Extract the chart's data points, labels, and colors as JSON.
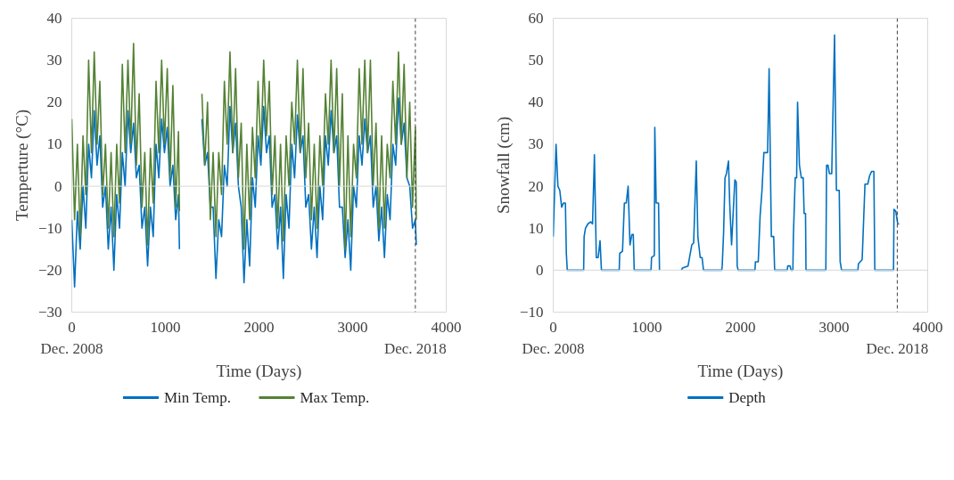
{
  "chart_data": [
    {
      "type": "line",
      "xlabel": "Time (Days)",
      "ylabel": "Temperture (°C)",
      "xlim": [
        0,
        4000
      ],
      "xticks": [
        0,
        1000,
        2000,
        3000,
        4000
      ],
      "ylim": [
        -30,
        40
      ],
      "yticks": [
        -30,
        -20,
        -10,
        0,
        10,
        20,
        30,
        40
      ],
      "grid": false,
      "legend": "bottom",
      "line_style": "solid",
      "x": [
        0,
        30,
        60,
        90,
        120,
        150,
        180,
        210,
        240,
        270,
        300,
        330,
        360,
        390,
        420,
        450,
        480,
        510,
        540,
        570,
        600,
        630,
        660,
        690,
        720,
        750,
        780,
        810,
        840,
        870,
        900,
        930,
        960,
        990,
        1020,
        1050,
        1080,
        1110,
        1140,
        1150,
        1270,
        1390,
        1420,
        1450,
        1480,
        1510,
        1540,
        1570,
        1600,
        1630,
        1660,
        1690,
        1720,
        1750,
        1780,
        1810,
        1840,
        1870,
        1900,
        1930,
        1960,
        1990,
        2020,
        2050,
        2080,
        2110,
        2140,
        2170,
        2200,
        2230,
        2260,
        2290,
        2320,
        2350,
        2380,
        2410,
        2440,
        2470,
        2500,
        2530,
        2560,
        2590,
        2620,
        2650,
        2680,
        2710,
        2740,
        2770,
        2800,
        2830,
        2860,
        2890,
        2920,
        2950,
        2980,
        3010,
        3040,
        3070,
        3100,
        3130,
        3160,
        3190,
        3220,
        3250,
        3280,
        3310,
        3340,
        3370,
        3400,
        3430,
        3460,
        3490,
        3520,
        3550,
        3580,
        3610,
        3640,
        3670,
        3680
      ],
      "series": [
        {
          "name": "Min Temp.",
          "color": "#0070c0",
          "values": [
            -8,
            -24,
            -6,
            -15,
            0,
            -10,
            10,
            2,
            18,
            5,
            12,
            -5,
            0,
            -15,
            -5,
            -20,
            -2,
            -10,
            8,
            0,
            18,
            8,
            15,
            2,
            5,
            -10,
            -5,
            -19,
            -5,
            -12,
            10,
            2,
            16,
            8,
            14,
            0,
            5,
            -8,
            -2,
            -15,
            null,
            16,
            5,
            8,
            -5,
            -5,
            -22,
            -8,
            -12,
            5,
            0,
            19,
            8,
            15,
            0,
            -5,
            -23,
            -8,
            -19,
            2,
            -5,
            12,
            5,
            19,
            8,
            12,
            -5,
            -2,
            -15,
            -5,
            -22,
            -2,
            -10,
            10,
            2,
            17,
            8,
            12,
            -5,
            -2,
            -15,
            -5,
            -17,
            0,
            -8,
            12,
            5,
            18,
            8,
            12,
            -5,
            -5,
            -17,
            -8,
            -20,
            0,
            -5,
            12,
            5,
            16,
            8,
            12,
            -5,
            0,
            -13,
            -5,
            -17,
            -2,
            -8,
            10,
            5,
            21,
            10,
            15,
            2,
            0,
            -10,
            -8,
            -14
          ]
        },
        {
          "name": "Max Temp.",
          "color": "#548235",
          "values": [
            16,
            -8,
            10,
            -12,
            12,
            -2,
            30,
            8,
            32,
            10,
            25,
            -2,
            10,
            -10,
            8,
            -12,
            10,
            -4,
            29,
            8,
            30,
            10,
            34,
            5,
            22,
            -5,
            8,
            -14,
            9,
            -4,
            25,
            8,
            30,
            10,
            28,
            2,
            24,
            -5,
            13,
            -6,
            null,
            22,
            5,
            20,
            -8,
            8,
            -12,
            8,
            -2,
            25,
            10,
            32,
            8,
            28,
            2,
            15,
            -15,
            10,
            -8,
            14,
            2,
            25,
            8,
            30,
            12,
            25,
            -2,
            12,
            -10,
            10,
            -13,
            12,
            0,
            20,
            10,
            30,
            8,
            28,
            2,
            15,
            -8,
            10,
            -10,
            12,
            0,
            22,
            10,
            30,
            8,
            28,
            0,
            22,
            -15,
            12,
            -12,
            10,
            2,
            28,
            10,
            30,
            8,
            30,
            0,
            15,
            -10,
            12,
            -10,
            10,
            2,
            25,
            10,
            32,
            10,
            29,
            2,
            20,
            -5,
            14,
            -8
          ]
        }
      ],
      "ref_lines": [
        {
          "axis": "y",
          "value": 0,
          "color": "#d9d9d9",
          "line_style": "solid"
        },
        {
          "axis": "x",
          "value": 3670,
          "label": "Dec. 2018",
          "color": "#404040",
          "line_style": "dashed"
        }
      ],
      "annotations": [
        "Dec. 2008"
      ]
    },
    {
      "type": "line",
      "xlabel": "Time (Days)",
      "ylabel": "Snowfall (cm)",
      "xlim": [
        0,
        4000
      ],
      "xticks": [
        0,
        1000,
        2000,
        3000,
        4000
      ],
      "ylim": [
        -10,
        60
      ],
      "yticks": [
        -10,
        0,
        10,
        20,
        30,
        40,
        50,
        60
      ],
      "grid": false,
      "legend": "bottom",
      "line_style": "solid",
      "x": [
        0,
        30,
        50,
        70,
        90,
        110,
        130,
        140,
        150,
        325,
        330,
        345,
        370,
        400,
        420,
        440,
        460,
        480,
        500,
        515,
        705,
        710,
        740,
        760,
        780,
        800,
        820,
        840,
        855,
        865,
        1045,
        1050,
        1080,
        1085,
        1100,
        1125,
        1135,
        1250,
        1370,
        1380,
        1440,
        1480,
        1500,
        1528,
        1545,
        1570,
        1590,
        1605,
        1800,
        1805,
        1820,
        1835,
        1850,
        1872,
        1885,
        1905,
        1940,
        1955,
        1965,
        1975,
        2155,
        2160,
        2190,
        2210,
        2230,
        2250,
        2290,
        2306,
        2330,
        2355,
        2365,
        2500,
        2505,
        2530,
        2540,
        2560,
        2565,
        2585,
        2600,
        2610,
        2630,
        2650,
        2670,
        2680,
        2695,
        2700,
        2912,
        2920,
        2935,
        2950,
        2975,
        3005,
        3025,
        3055,
        3065,
        3080,
        3255,
        3260,
        3300,
        3330,
        3360,
        3380,
        3400,
        3425,
        3435,
        3635,
        3640,
        3660,
        3680,
        3695
      ],
      "series": [
        {
          "name": "Depth",
          "color": "#0070c0",
          "values": [
            8,
            30,
            20,
            19,
            15,
            16,
            16,
            4,
            0,
            0,
            8,
            10,
            11,
            11.5,
            11,
            27.5,
            3,
            3,
            7,
            0,
            0,
            4,
            4.5,
            16,
            16,
            20,
            6,
            8.5,
            8.5,
            0,
            0,
            3,
            3.5,
            34,
            16,
            16,
            0,
            null,
            0,
            0.5,
            1,
            6,
            6.5,
            26,
            8,
            3,
            3,
            0,
            0,
            1,
            9,
            22,
            23,
            26,
            16,
            6,
            21.5,
            21,
            1,
            0,
            0,
            2,
            2,
            13,
            19,
            28,
            28,
            48,
            8,
            8,
            0,
            0,
            1,
            1,
            0,
            0,
            8,
            22,
            22,
            40,
            25,
            22,
            22,
            13.5,
            13.5,
            0,
            0,
            25,
            25,
            23,
            23,
            56,
            19,
            19,
            2,
            0,
            0,
            1.5,
            2.5,
            20.5,
            20.5,
            22.5,
            23.5,
            23.5,
            0,
            0,
            14.5,
            14,
            11,
            11
          ]
        }
      ],
      "ref_lines": [
        {
          "axis": "y",
          "value": 0,
          "color": "#d9d9d9",
          "line_style": "solid"
        },
        {
          "axis": "x",
          "value": 3675,
          "label": "Dec. 2018",
          "color": "#404040",
          "line_style": "dashed"
        }
      ],
      "annotations": [
        "Dec. 2008"
      ]
    }
  ]
}
